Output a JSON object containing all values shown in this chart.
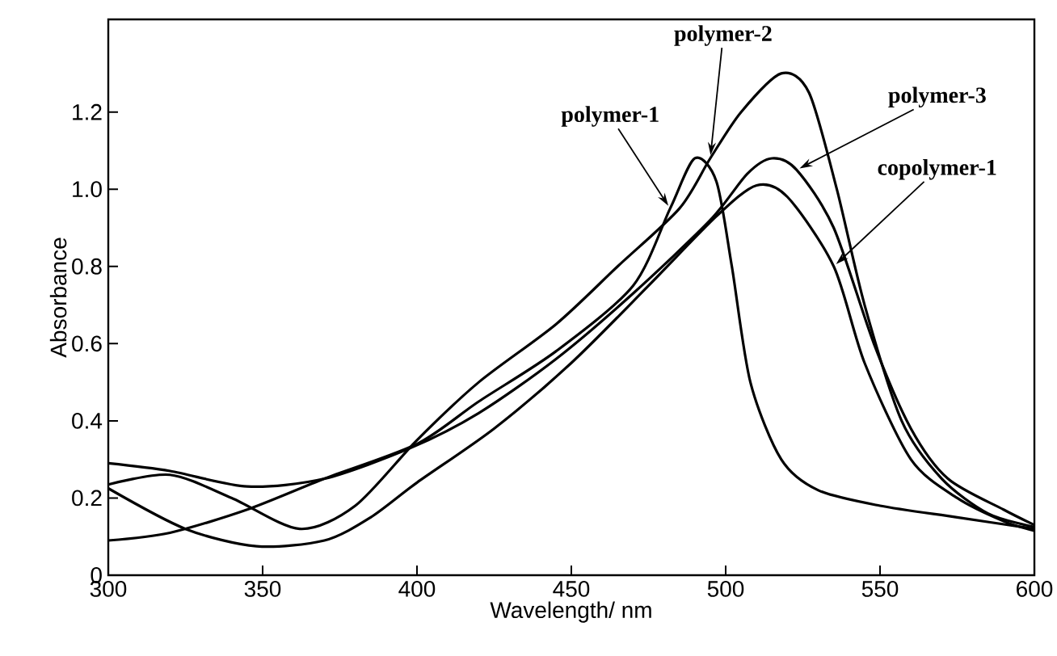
{
  "chart_data": {
    "type": "line",
    "xlabel": "Wavelength/ nm",
    "ylabel": "Absorbance",
    "xlim": [
      300,
      600
    ],
    "ylim": [
      0,
      1.44
    ],
    "xticks": [
      300,
      350,
      400,
      450,
      500,
      550,
      600
    ],
    "yticks": [
      0,
      0.2,
      0.4,
      0.6,
      0.8,
      {
        "value": 1,
        "label": "1.0"
      },
      1.2
    ],
    "series": [
      {
        "name": "polymer-1",
        "color": "#000000",
        "x": [
          300,
          320,
          345,
          370,
          400,
          420,
          445,
          470,
          482,
          490,
          497,
          502,
          508,
          518,
          530,
          550,
          575,
          600
        ],
        "values": [
          0.09,
          0.11,
          0.17,
          0.25,
          0.34,
          0.45,
          0.58,
          0.75,
          0.95,
          1.08,
          1.02,
          0.8,
          0.5,
          0.3,
          0.22,
          0.18,
          0.15,
          0.12
        ]
      },
      {
        "name": "polymer-2",
        "color": "#000000",
        "x": [
          300,
          320,
          340,
          362,
          380,
          400,
          420,
          445,
          465,
          485,
          495,
          505,
          518,
          527,
          536,
          545,
          557,
          570,
          585,
          600
        ],
        "values": [
          0.235,
          0.26,
          0.2,
          0.12,
          0.18,
          0.35,
          0.5,
          0.65,
          0.8,
          0.95,
          1.08,
          1.2,
          1.3,
          1.25,
          1.0,
          0.7,
          0.4,
          0.25,
          0.16,
          0.125
        ]
      },
      {
        "name": "polymer-3",
        "color": "#000000",
        "x": [
          300,
          320,
          345,
          370,
          398,
          420,
          445,
          470,
          495,
          507,
          515,
          523,
          535,
          548,
          560,
          572,
          590,
          600
        ],
        "values": [
          0.29,
          0.27,
          0.23,
          0.25,
          0.33,
          0.42,
          0.56,
          0.73,
          0.92,
          1.04,
          1.08,
          1.05,
          0.9,
          0.6,
          0.38,
          0.25,
          0.17,
          0.13
        ]
      },
      {
        "name": "copolymer-1",
        "color": "#000000",
        "x": [
          300,
          325,
          348,
          370,
          385,
          400,
          425,
          450,
          475,
          497,
          510,
          520,
          535,
          545,
          560,
          575,
          590,
          600
        ],
        "values": [
          0.225,
          0.12,
          0.075,
          0.09,
          0.15,
          0.24,
          0.38,
          0.55,
          0.75,
          0.93,
          1.01,
          0.98,
          0.8,
          0.55,
          0.3,
          0.2,
          0.14,
          0.115
        ]
      }
    ],
    "grid": false,
    "legend": false,
    "marker": "none",
    "line_style": "solid"
  }
}
